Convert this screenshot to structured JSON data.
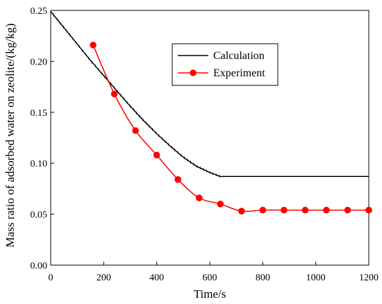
{
  "chart_data": {
    "type": "line",
    "title": "",
    "xlabel": "Time/s",
    "ylabel": "Mass ratio of adsorbed water on zeolite/(kg/kg)",
    "xlim": [
      0,
      1200
    ],
    "ylim": [
      0,
      0.25
    ],
    "xticks": [
      0,
      200,
      400,
      600,
      800,
      1000,
      1200
    ],
    "yticks": [
      0.0,
      0.05,
      0.1,
      0.15,
      0.2,
      0.25
    ],
    "xtick_labels": [
      "0",
      "200",
      "400",
      "600",
      "800",
      "1000",
      "1200"
    ],
    "ytick_labels": [
      "0.00",
      "0.05",
      "0.10",
      "0.15",
      "0.20",
      "0.25"
    ],
    "grid": false,
    "legend_position": "upper-center",
    "series": [
      {
        "name": "Calculation",
        "color": "#000000",
        "marker": "none",
        "x": [
          0,
          50,
          100,
          150,
          200,
          250,
          300,
          350,
          400,
          450,
          500,
          550,
          600,
          640,
          650,
          700,
          800,
          900,
          1000,
          1100,
          1200
        ],
        "y": [
          0.249,
          0.233,
          0.217,
          0.201,
          0.186,
          0.171,
          0.156,
          0.142,
          0.129,
          0.117,
          0.106,
          0.097,
          0.091,
          0.087,
          0.087,
          0.087,
          0.087,
          0.087,
          0.087,
          0.087,
          0.087
        ]
      },
      {
        "name": "Experiment",
        "color": "#ff0000",
        "marker": "circle",
        "x": [
          160,
          240,
          320,
          400,
          480,
          560,
          640,
          720,
          800,
          880,
          960,
          1040,
          1120,
          1200
        ],
        "y": [
          0.216,
          0.168,
          0.132,
          0.108,
          0.084,
          0.066,
          0.06,
          0.053,
          0.054,
          0.054,
          0.054,
          0.054,
          0.054,
          0.054
        ]
      }
    ]
  }
}
